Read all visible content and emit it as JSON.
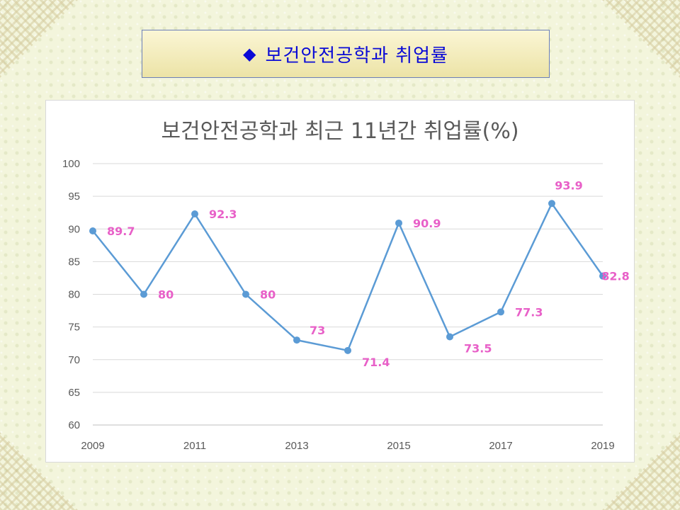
{
  "slide": {
    "title_icon": "◆",
    "title": "보건안전공학과 취업률"
  },
  "chart_data": {
    "type": "line",
    "title": "보건안전공학과 최근 11년간 취업률(%)",
    "x": [
      2009,
      2010,
      2011,
      2012,
      2013,
      2014,
      2015,
      2016,
      2017,
      2018,
      2019
    ],
    "x_tick_labels": [
      "2009",
      "2011",
      "2013",
      "2015",
      "2017",
      "2019"
    ],
    "series": [
      {
        "values": [
          89.7,
          80,
          92.3,
          80,
          73,
          71.4,
          90.9,
          73.5,
          77.3,
          93.9,
          82.8
        ]
      }
    ],
    "data_labels": [
      "89.7",
      "80",
      "92.3",
      "80",
      "73",
      "71.4",
      "90.9",
      "73.5",
      "77.3",
      "93.9",
      "82.8"
    ],
    "ylim": [
      60,
      100
    ],
    "y_ticks": [
      60,
      65,
      70,
      75,
      80,
      85,
      90,
      95,
      100
    ],
    "grid": "horizontal",
    "legend": "none",
    "colors": {
      "line": "#5b9bd5",
      "marker": "#5b9bd5",
      "data_label": "#e860c8",
      "grid": "#d9d9d9"
    }
  }
}
